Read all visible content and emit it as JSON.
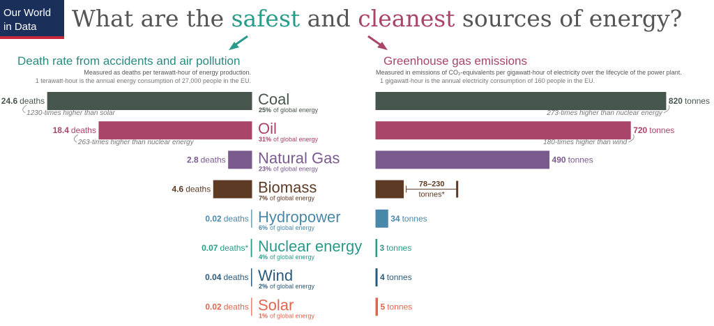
{
  "logo": [
    "Our World",
    "in Data"
  ],
  "title_parts": [
    {
      "text": "What are the ",
      "color": "#555555"
    },
    {
      "text": "safest",
      "color": "#2a9a8a"
    },
    {
      "text": " and ",
      "color": "#555555"
    },
    {
      "text": "cleanest",
      "color": "#a9446b"
    },
    {
      "text": " sources of energy?",
      "color": "#555555"
    }
  ],
  "categories": [
    "Coal",
    "Oil",
    "Natural Gas",
    "Biomass",
    "Hydropower",
    "Nuclear energy",
    "Wind",
    "Solar"
  ],
  "category_colors": [
    "#47564c",
    "#a9446b",
    "#7a5a8c",
    "#5c3a24",
    "#4a88aa",
    "#2a9a8a",
    "#2a5a7a",
    "#e0654f"
  ],
  "shares": [
    "25%",
    "31%",
    "23%",
    "7%",
    "6%",
    "4%",
    "2%",
    "1%"
  ],
  "share_suffix": "of global energy",
  "chart_data": [
    {
      "type": "bar",
      "orientation": "horizontal",
      "title": "Death rate from accidents and air pollution",
      "title_color": "#2a8a80",
      "subtitle": [
        "Measured as deaths per terawatt-hour of energy production.",
        "1 terawatt-hour is the annual energy consumption of 27,000 people in the EU."
      ],
      "values": [
        24.6,
        18.4,
        2.8,
        4.6,
        0.02,
        0.07,
        0.04,
        0.02
      ],
      "unit_labels": [
        "deaths",
        "deaths",
        "deaths",
        "deaths",
        "deaths",
        "deaths*",
        "deaths",
        "deaths"
      ],
      "notes": [
        "1230-times higher than solar",
        "263-times higher than nuclear energy",
        null,
        null,
        null,
        null,
        null,
        null
      ],
      "xlim": [
        0,
        25
      ]
    },
    {
      "type": "bar",
      "orientation": "horizontal",
      "title": "Greenhouse gas emissions",
      "title_color": "#a9446b",
      "subtitle": [
        "Measured in emissions of CO₂-equivalents per gigawatt-hour of electricity over the lifecycle of the power plant.",
        "1 gigawatt-hour is the annual electricity consumption of 160 people in the EU."
      ],
      "values": [
        820,
        720,
        490,
        78,
        34,
        3,
        4,
        5
      ],
      "value_labels": [
        "820",
        "720",
        "490",
        "78–230",
        "34",
        "3",
        "4",
        "5"
      ],
      "errors": [
        null,
        null,
        null,
        [
          78,
          230
        ],
        null,
        null,
        null,
        null
      ],
      "unit_labels": [
        "tonnes",
        "tonnes",
        "tonnes",
        "tonnes*",
        "tonnes",
        "tonnes",
        "tonnes",
        "tonnes"
      ],
      "notes": [
        "273-times higher than nuclear energy",
        "180-times higher than wind",
        null,
        null,
        null,
        null,
        null,
        null
      ],
      "xlim": [
        0,
        830
      ]
    }
  ]
}
